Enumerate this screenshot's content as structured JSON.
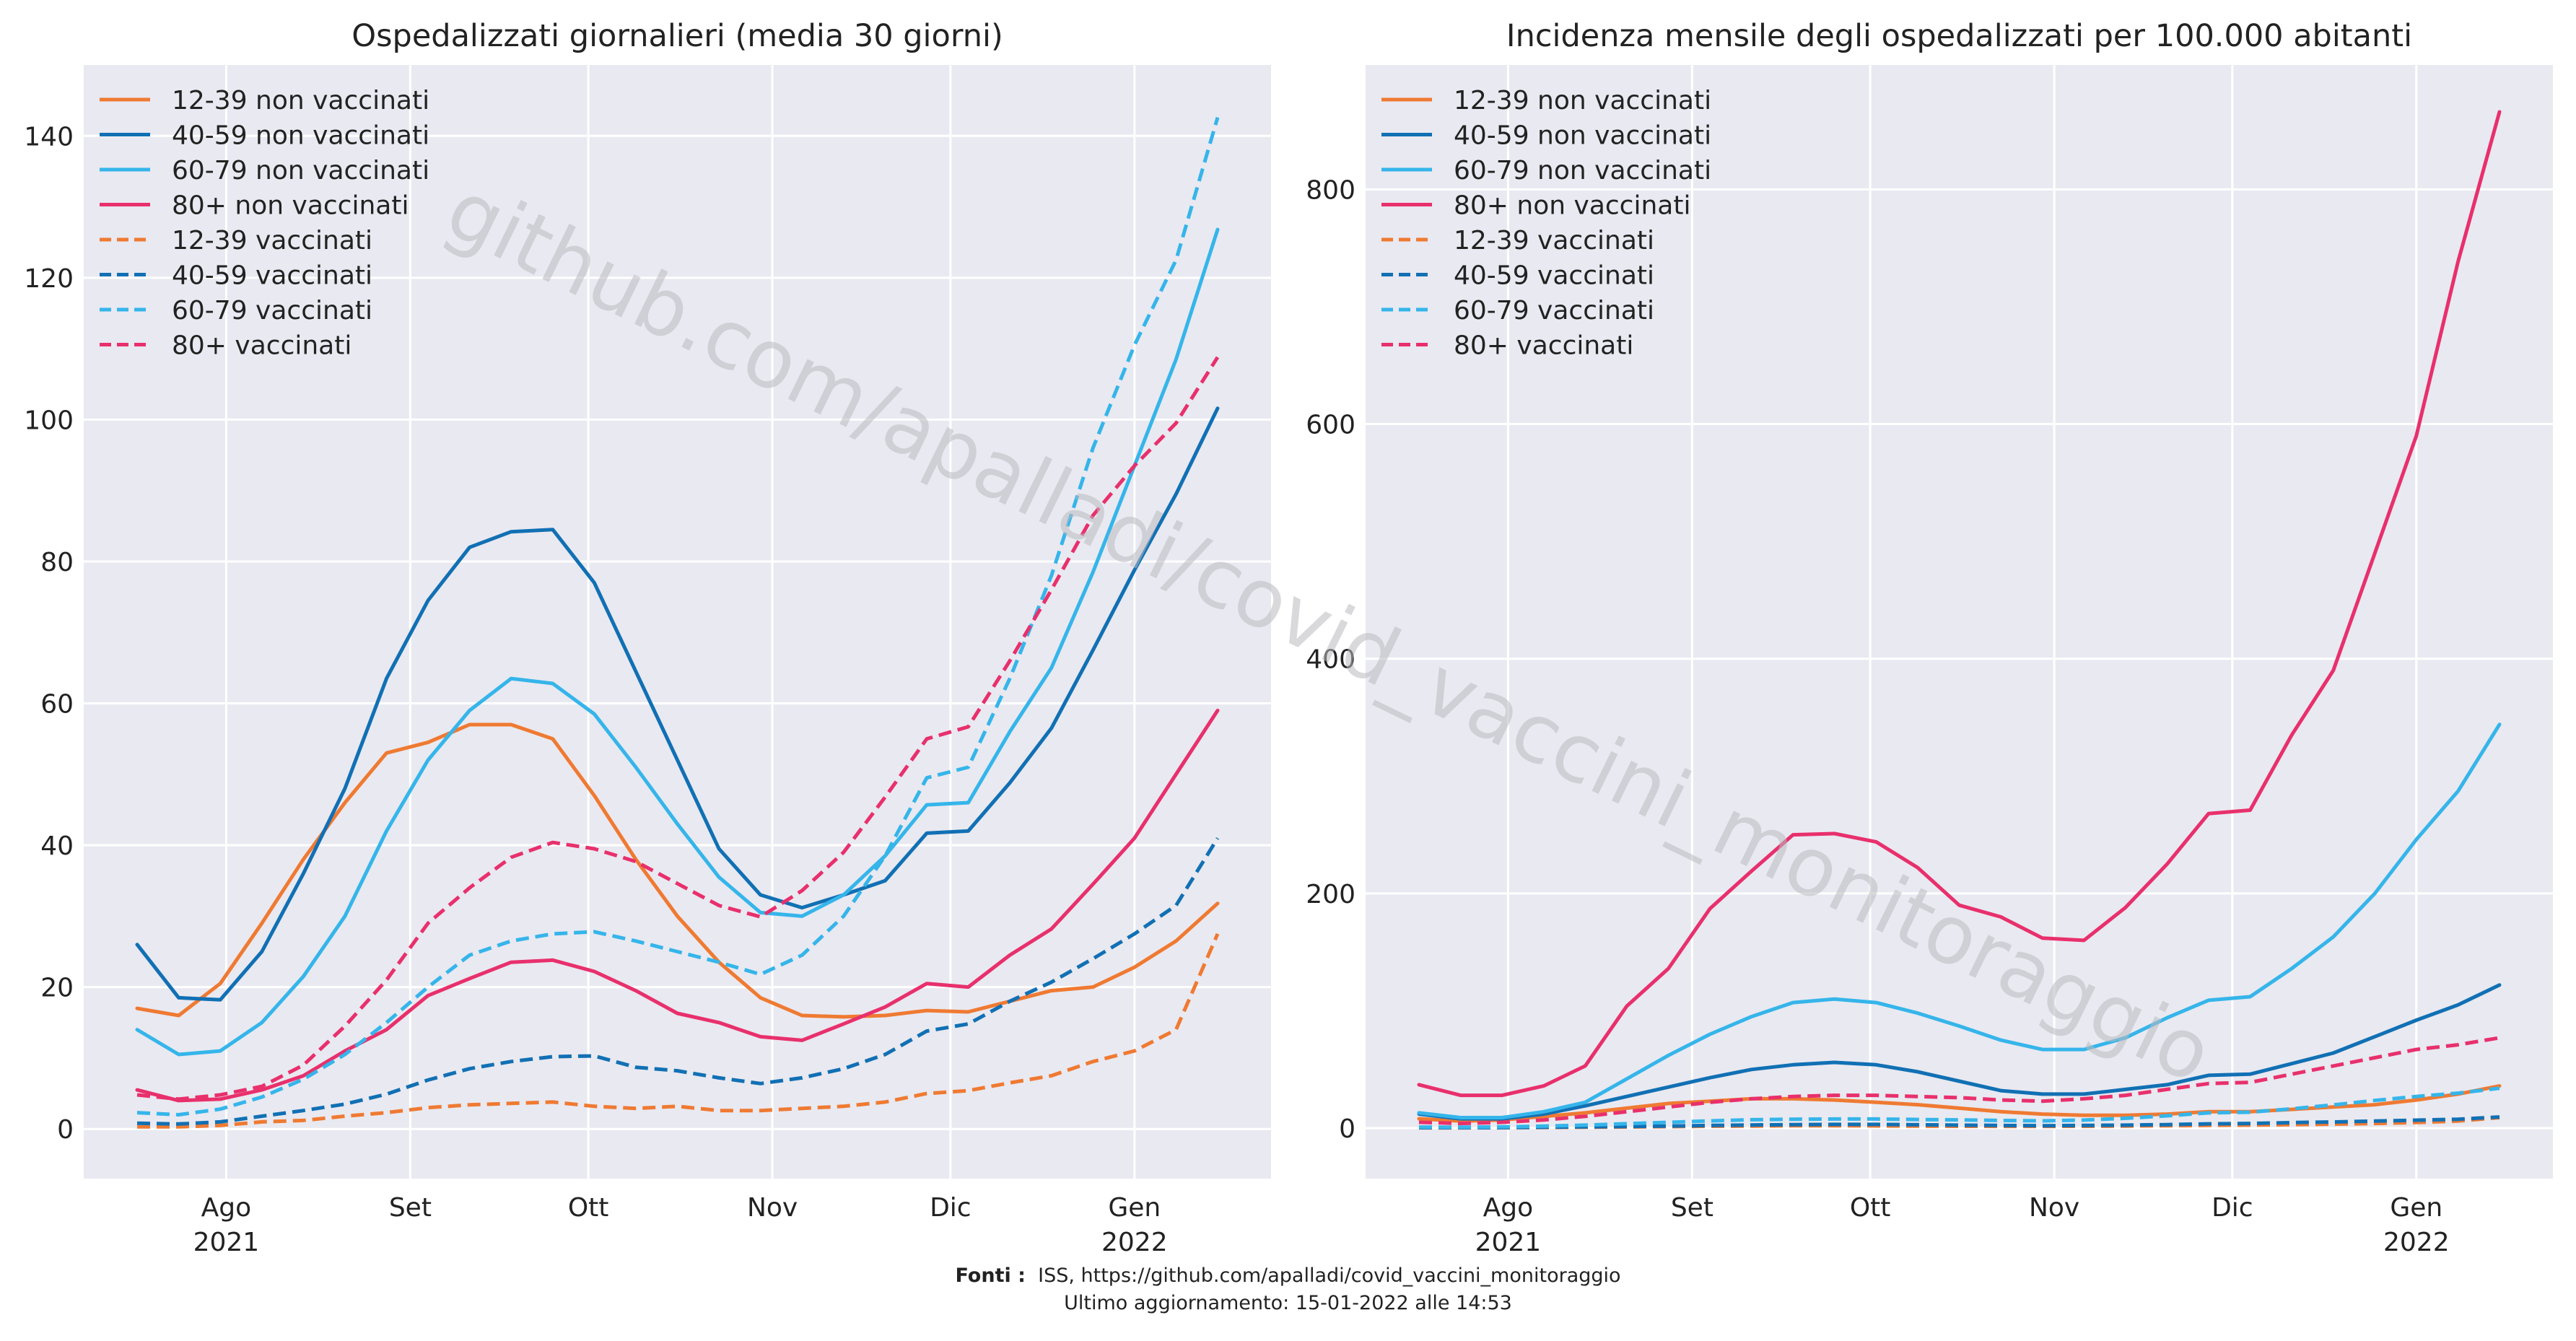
{
  "footer": {
    "source_label": "Fonti :",
    "source_text": "ISS, https://github.com/apalladi/covid_vaccini_monitoraggio",
    "updated": "Ultimo aggiornamento: 15-01-2022 alle 14:53"
  },
  "watermark": "github.com/apalladi/covid_vaccini_monitoraggio",
  "colors": {
    "12-39": "#ef7a32",
    "40-59": "#1170b4",
    "60-79": "#35b5ea",
    "80+": "#e8306c",
    "plot_bg": "#e9e9f1",
    "grid": "#ffffff"
  },
  "chart_data": [
    {
      "type": "line",
      "title": "Ospedalizzati giornalieri (media 30 giorni)",
      "xlabel": "",
      "ylabel": "",
      "x": [
        "2021-07-17",
        "2021-07-24",
        "2021-07-31",
        "2021-08-07",
        "2021-08-14",
        "2021-08-21",
        "2021-08-28",
        "2021-09-04",
        "2021-09-11",
        "2021-09-18",
        "2021-09-25",
        "2021-10-02",
        "2021-10-09",
        "2021-10-16",
        "2021-10-23",
        "2021-10-30",
        "2021-11-06",
        "2021-11-13",
        "2021-11-20",
        "2021-11-27",
        "2021-12-04",
        "2021-12-11",
        "2021-12-18",
        "2021-12-25",
        "2022-01-01",
        "2022-01-08",
        "2022-01-15"
      ],
      "x_ticks": [
        {
          "date": "2021-08-01",
          "label": "Ago",
          "label2": "2021"
        },
        {
          "date": "2021-09-01",
          "label": "Set",
          "label2": ""
        },
        {
          "date": "2021-10-01",
          "label": "Ott",
          "label2": ""
        },
        {
          "date": "2021-11-01",
          "label": "Nov",
          "label2": ""
        },
        {
          "date": "2021-12-01",
          "label": "Dic",
          "label2": ""
        },
        {
          "date": "2022-01-01",
          "label": "Gen",
          "label2": "2022"
        }
      ],
      "xlim": [
        "2021-07-08",
        "2022-01-24"
      ],
      "ylim": [
        -7,
        150
      ],
      "y_ticks": [
        0,
        20,
        40,
        60,
        80,
        100,
        120,
        140
      ],
      "grid": true,
      "legend_position": "top-left",
      "series": [
        {
          "name": "12-39 non vaccinati",
          "group": "12-39",
          "dashed": false,
          "values": [
            17,
            16,
            20.5,
            29,
            38,
            46,
            53,
            54.5,
            57,
            57,
            55,
            47,
            38,
            30,
            23.5,
            18.5,
            16,
            15.8,
            16,
            16.7,
            16.5,
            18,
            19.5,
            20,
            22.8,
            26.5,
            31.8
          ]
        },
        {
          "name": "40-59 non vaccinati",
          "group": "40-59",
          "dashed": false,
          "values": [
            26,
            18.5,
            18.2,
            25,
            36,
            48,
            63.5,
            74.5,
            82,
            84.2,
            84.5,
            77,
            64.5,
            52,
            39.5,
            33,
            31.2,
            33,
            35,
            41.7,
            42,
            48.8,
            56.5,
            67.5,
            78.8,
            89.5,
            101.6
          ]
        },
        {
          "name": "60-79 non vaccinati",
          "group": "60-79",
          "dashed": false,
          "values": [
            14,
            10.5,
            11,
            15,
            21.5,
            30,
            42,
            52,
            59,
            63.5,
            62.8,
            58.5,
            51,
            43,
            35.5,
            30.5,
            30,
            33,
            38.5,
            45.7,
            46,
            56,
            65,
            78.5,
            93.5,
            108.5,
            126.8
          ]
        },
        {
          "name": "80+ non vaccinati",
          "group": "80+",
          "dashed": false,
          "values": [
            5.5,
            4,
            4.2,
            5.5,
            7.5,
            11,
            14,
            18.8,
            21.2,
            23.5,
            23.8,
            22.2,
            19.5,
            16.3,
            15,
            13,
            12.5,
            14.8,
            17.2,
            20.5,
            20,
            24.5,
            28.2,
            34.5,
            41,
            50,
            59
          ]
        },
        {
          "name": "12-39 vaccinati",
          "group": "12-39",
          "dashed": true,
          "values": [
            0.3,
            0.3,
            0.5,
            1,
            1.2,
            1.8,
            2.3,
            3,
            3.4,
            3.6,
            3.8,
            3.2,
            2.9,
            3.2,
            2.6,
            2.6,
            2.9,
            3.2,
            3.8,
            5,
            5.4,
            6.5,
            7.5,
            9.5,
            11,
            14,
            27.5
          ]
        },
        {
          "name": "40-59 vaccinati",
          "group": "40-59",
          "dashed": true,
          "values": [
            0.8,
            0.7,
            1,
            1.8,
            2.6,
            3.5,
            4.9,
            6.9,
            8.5,
            9.5,
            10.2,
            10.3,
            8.7,
            8.2,
            7.2,
            6.4,
            7.2,
            8.5,
            10.5,
            13.8,
            14.8,
            18,
            20.7,
            24,
            27.5,
            31.5,
            41
          ]
        },
        {
          "name": "60-79 vaccinati",
          "group": "60-79",
          "dashed": true,
          "values": [
            2.3,
            2,
            2.8,
            4.5,
            7,
            10.5,
            15,
            20,
            24.5,
            26.5,
            27.5,
            27.8,
            26.5,
            25,
            23.5,
            21.8,
            24.5,
            30,
            38.5,
            49.5,
            51,
            63.5,
            78,
            96,
            110.5,
            122.5,
            142.6
          ]
        },
        {
          "name": "80+ vaccinati",
          "group": "80+",
          "dashed": true,
          "values": [
            4.8,
            4.2,
            4.8,
            6,
            9,
            14.5,
            21,
            29,
            34,
            38.3,
            40.4,
            39.5,
            37.7,
            34.6,
            31.5,
            29.9,
            33.6,
            39,
            46.8,
            55,
            56.7,
            66,
            76,
            86.5,
            93.5,
            99.5,
            108.8
          ]
        }
      ]
    },
    {
      "type": "line",
      "title": "Incidenza mensile degli ospedalizzati per 100.000 abitanti",
      "xlabel": "",
      "ylabel": "",
      "x": [
        "2021-07-17",
        "2021-07-24",
        "2021-07-31",
        "2021-08-07",
        "2021-08-14",
        "2021-08-21",
        "2021-08-28",
        "2021-09-04",
        "2021-09-11",
        "2021-09-18",
        "2021-09-25",
        "2021-10-02",
        "2021-10-09",
        "2021-10-16",
        "2021-10-23",
        "2021-10-30",
        "2021-11-06",
        "2021-11-13",
        "2021-11-20",
        "2021-11-27",
        "2021-12-04",
        "2021-12-11",
        "2021-12-18",
        "2021-12-25",
        "2022-01-01",
        "2022-01-08",
        "2022-01-15"
      ],
      "x_ticks": [
        {
          "date": "2021-08-01",
          "label": "Ago",
          "label2": "2021"
        },
        {
          "date": "2021-09-01",
          "label": "Set",
          "label2": ""
        },
        {
          "date": "2021-10-01",
          "label": "Ott",
          "label2": ""
        },
        {
          "date": "2021-11-01",
          "label": "Nov",
          "label2": ""
        },
        {
          "date": "2021-12-01",
          "label": "Dic",
          "label2": ""
        },
        {
          "date": "2022-01-01",
          "label": "Gen",
          "label2": "2022"
        }
      ],
      "xlim": [
        "2021-07-08",
        "2022-01-24"
      ],
      "ylim": [
        -43,
        906
      ],
      "y_ticks": [
        0,
        200,
        400,
        600,
        800
      ],
      "grid": true,
      "legend_position": "top-left",
      "series": [
        {
          "name": "12-39 non vaccinati",
          "group": "12-39",
          "dashed": false,
          "values": [
            8,
            6,
            7,
            10,
            13,
            17,
            21,
            23,
            25,
            25,
            24,
            22,
            20,
            17,
            14,
            12,
            11,
            11,
            12,
            14,
            14,
            16,
            18,
            20,
            24,
            29,
            36
          ]
        },
        {
          "name": "40-59 non vaccinati",
          "group": "40-59",
          "dashed": false,
          "values": [
            12,
            8,
            8,
            12,
            19,
            27,
            35,
            43,
            50,
            54,
            56,
            54,
            48,
            40,
            32,
            29,
            29,
            33,
            37,
            45,
            46,
            55,
            64,
            78,
            92,
            105,
            122
          ]
        },
        {
          "name": "60-79 non vaccinati",
          "group": "60-79",
          "dashed": false,
          "values": [
            13,
            9,
            9,
            14,
            22,
            42,
            62,
            80,
            95,
            107,
            110,
            107,
            98,
            87,
            75,
            67,
            67,
            77,
            94,
            109,
            112,
            136,
            163,
            200,
            246,
            287,
            344
          ]
        },
        {
          "name": "80+ non vaccinati",
          "group": "80+",
          "dashed": false,
          "values": [
            37,
            28,
            28,
            36,
            53,
            104,
            136,
            187,
            219,
            250,
            251,
            244,
            222,
            190,
            180,
            162,
            160,
            188,
            225,
            268,
            271,
            335,
            390,
            490,
            590,
            738,
            866
          ]
        },
        {
          "name": "12-39 vaccinati",
          "group": "12-39",
          "dashed": true,
          "values": [
            0.3,
            0.3,
            0.4,
            0.6,
            0.8,
            1,
            1.3,
            1.6,
            1.8,
            2,
            2.1,
            1.9,
            1.7,
            1.6,
            1.5,
            1.5,
            1.6,
            1.8,
            2,
            2.4,
            2.6,
            3,
            3.4,
            4,
            4.8,
            6,
            9
          ]
        },
        {
          "name": "40-59 vaccinati",
          "group": "40-59",
          "dashed": true,
          "values": [
            0.4,
            0.4,
            0.5,
            0.8,
            1.1,
            1.4,
            1.8,
            2.3,
            2.7,
            3,
            3.2,
            3.2,
            2.9,
            2.6,
            2.3,
            2.1,
            2.3,
            2.6,
            3,
            3.7,
            4,
            4.7,
            5.3,
            6,
            6.8,
            7.6,
            9.5
          ]
        },
        {
          "name": "60-79 vaccinati",
          "group": "60-79",
          "dashed": true,
          "values": [
            0.9,
            0.8,
            1.1,
            1.7,
            2.6,
            3.8,
            5,
            6.2,
            7.2,
            7.6,
            7.8,
            7.8,
            7.4,
            7,
            6.6,
            6.2,
            6.9,
            8.4,
            10.5,
            13,
            13.6,
            16.5,
            19.8,
            23.6,
            27,
            29.8,
            34
          ]
        },
        {
          "name": "80+ vaccinati",
          "group": "80+",
          "dashed": true,
          "values": [
            5,
            4,
            5,
            7,
            10,
            14,
            18,
            22,
            25,
            27,
            28,
            28,
            27,
            26,
            24,
            23,
            25,
            28,
            33,
            38,
            39,
            46,
            53,
            60,
            67,
            71,
            77
          ]
        }
      ]
    }
  ]
}
